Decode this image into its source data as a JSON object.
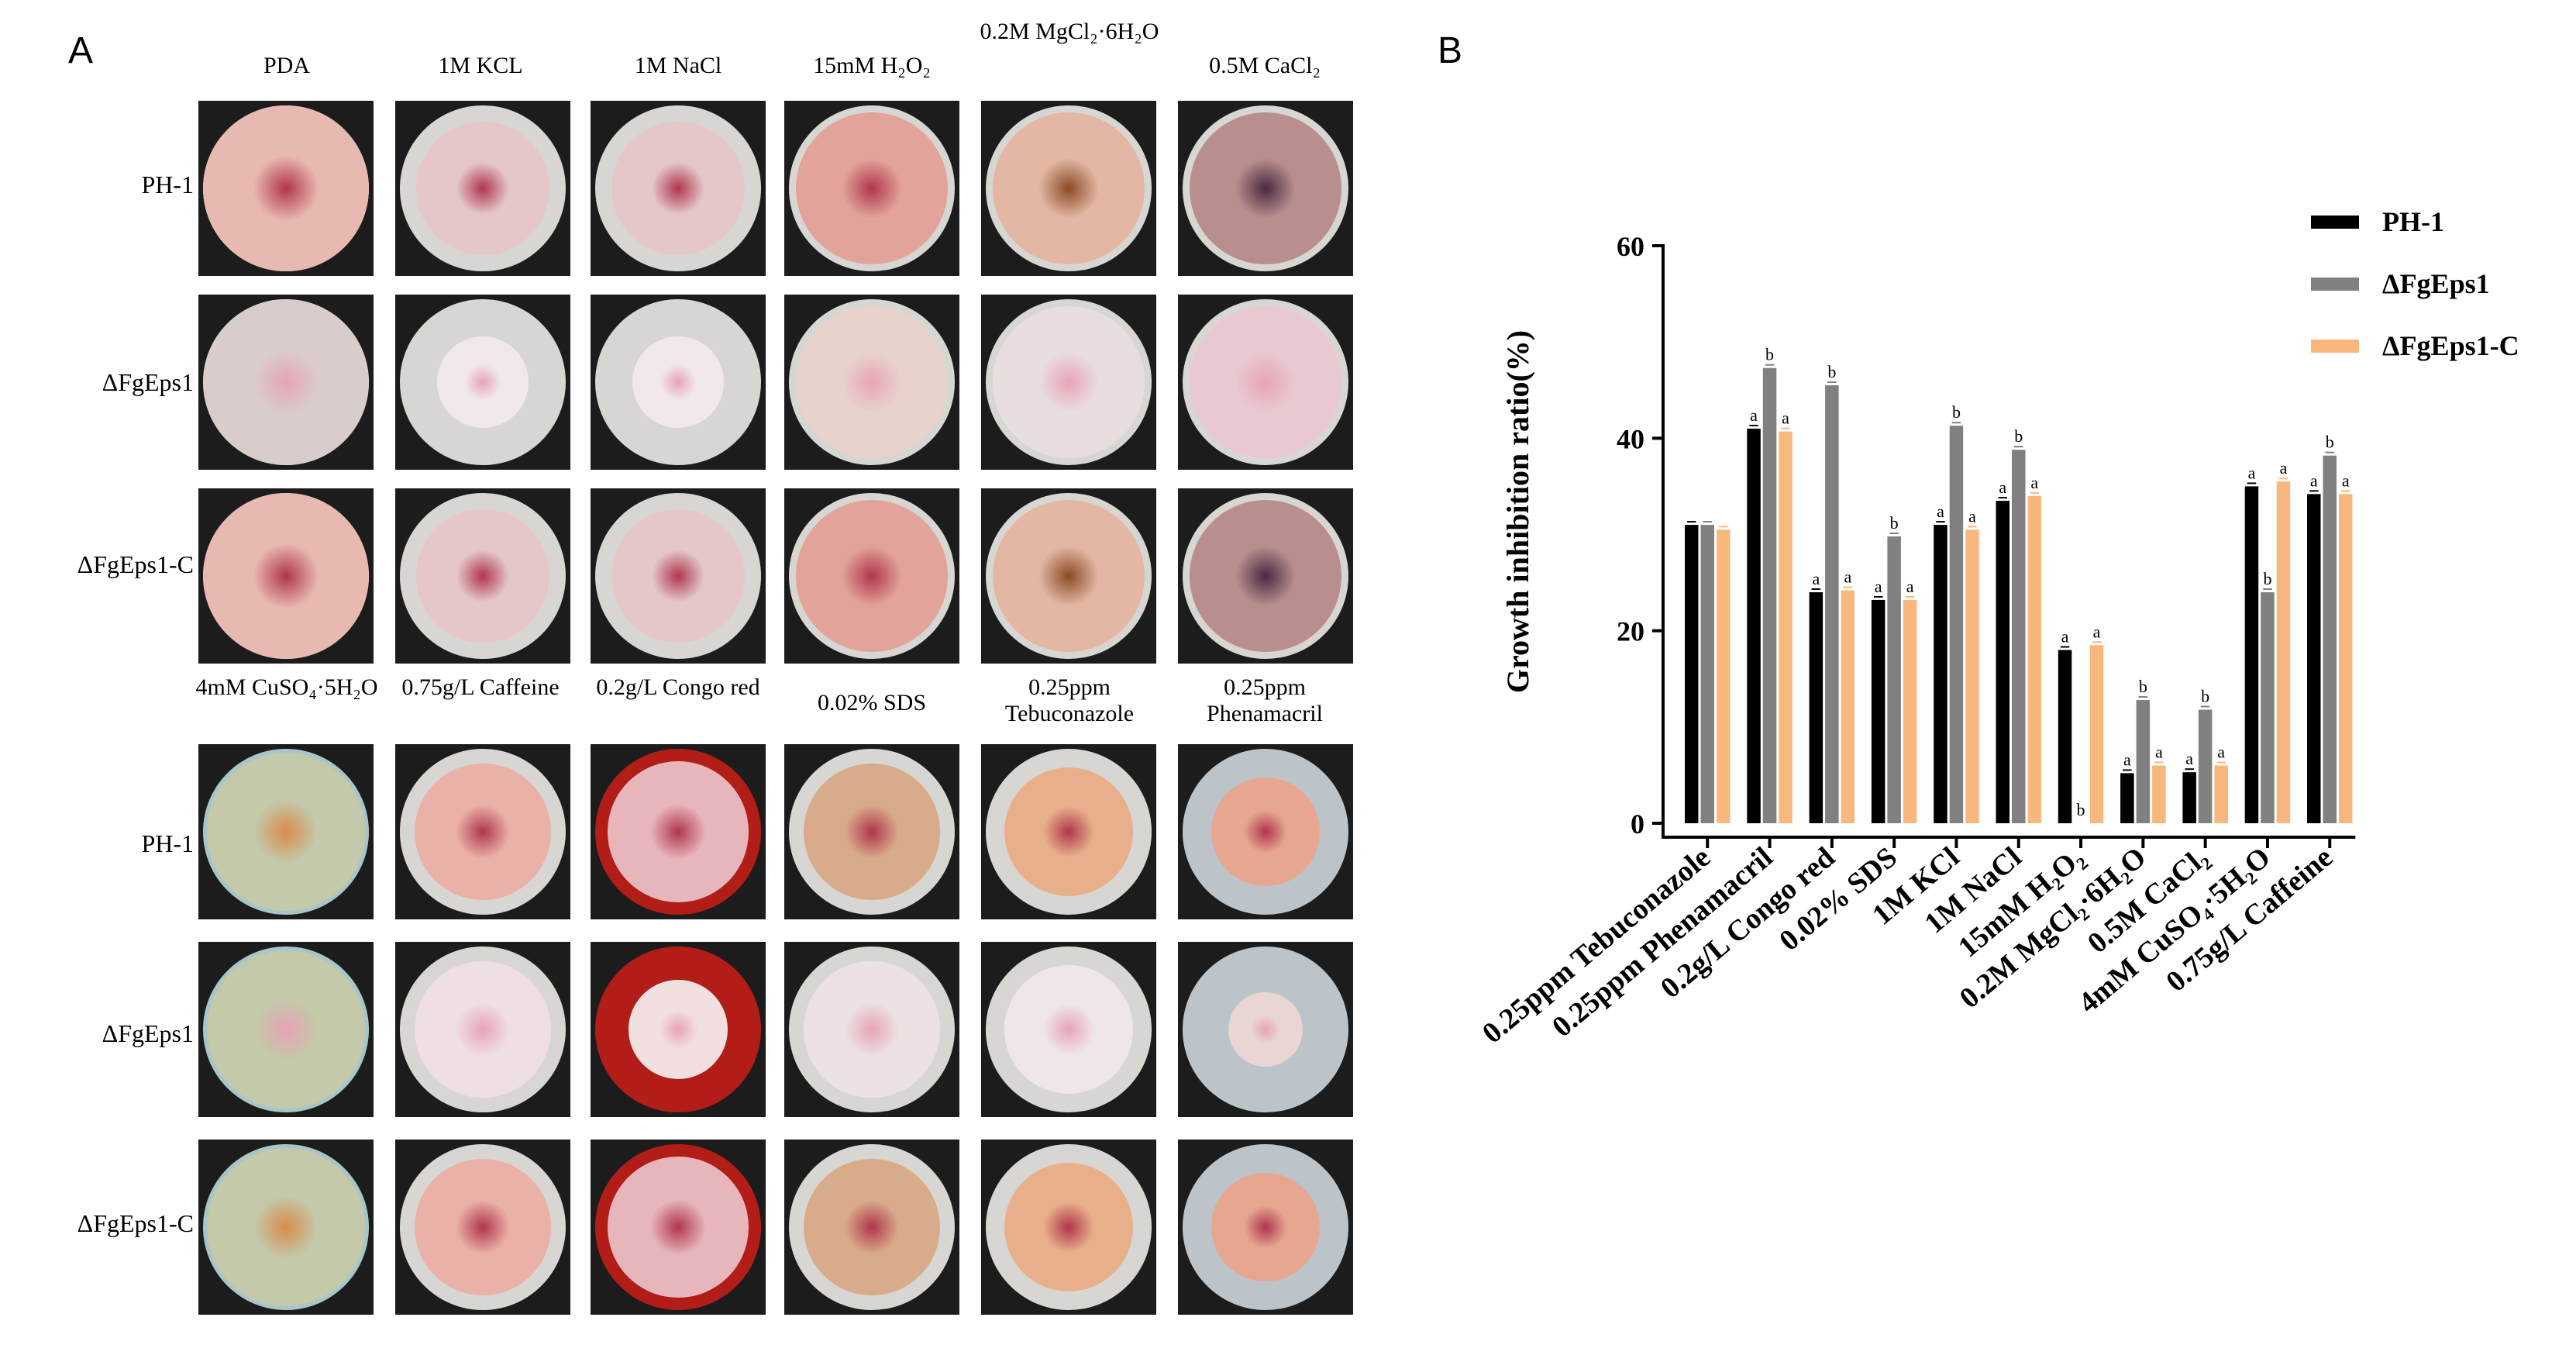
{
  "panel_a": {
    "label": "A",
    "top_columns": [
      "PDA",
      "1M KCL",
      "1M NaCl",
      "15mM H₂O₂",
      "0.2M MgCl₂·6H₂O",
      "0.5M CaCl₂"
    ],
    "bottom_columns": [
      "4mM CuSO₄·5H₂O",
      "0.75g/L Caffeine",
      "0.2g/L Congo red",
      "0.02% SDS",
      "0.25ppm Tebuconazole",
      "0.25ppm Phenamacril"
    ],
    "rows": [
      "PH-1",
      "ΔFgEps1",
      "ΔFgEps1-C"
    ]
  },
  "panel_b": {
    "label": "B"
  },
  "chart_data": {
    "type": "bar",
    "title": "",
    "xlabel": "",
    "ylabel": "Growth inhibition ratio(%)",
    "ylim": [
      0,
      60
    ],
    "yticks": [
      "0",
      "20",
      "40",
      "60"
    ],
    "categories": [
      "0.25ppm Tebuconazole",
      "0.25ppm Phenamacril",
      "0.2g/L Congo red",
      "0.02% SDS",
      "1M KCl",
      "1M NaCl",
      "15mM H₂O₂",
      "0.2M MgCl₂·6H₂O",
      "0.5M CaCl₂",
      "4mM CuSO₄·5H₂O",
      "0.75g/L Caffeine"
    ],
    "series": [
      {
        "name": "PH-1",
        "color": "#000000",
        "values": [
          31,
          41,
          24,
          23.2,
          31,
          33.5,
          18,
          5.2,
          5.3,
          35,
          34.2
        ],
        "letters": [
          "",
          "a",
          "a",
          "a",
          "a",
          "a",
          "a",
          "a",
          "a",
          "a",
          "a"
        ]
      },
      {
        "name": "ΔFgEps1",
        "color": "#808080",
        "values": [
          31,
          47.3,
          45.5,
          29.8,
          41.3,
          38.8,
          0,
          12.8,
          11.8,
          24,
          38.2
        ],
        "letters": [
          "",
          "b",
          "b",
          "b",
          "b",
          "b",
          "b",
          "b",
          "b",
          "b",
          "b"
        ]
      },
      {
        "name": "ΔFgEps1-C",
        "color": "#f7b77d",
        "values": [
          30.5,
          40.7,
          24.2,
          23.2,
          30.5,
          34,
          18.5,
          6,
          6,
          35.5,
          34.2
        ],
        "letters": [
          "",
          "a",
          "a",
          "a",
          "a",
          "a",
          "a",
          "a",
          "a",
          "a",
          "a"
        ]
      }
    ],
    "legend": "top-right"
  },
  "colors": {
    "plate_bg": "#1c1c1c",
    "colony_pink": "#e8bfc4",
    "congo_red": "#c0221c",
    "cuso4_blue": "#b9d3d6"
  }
}
